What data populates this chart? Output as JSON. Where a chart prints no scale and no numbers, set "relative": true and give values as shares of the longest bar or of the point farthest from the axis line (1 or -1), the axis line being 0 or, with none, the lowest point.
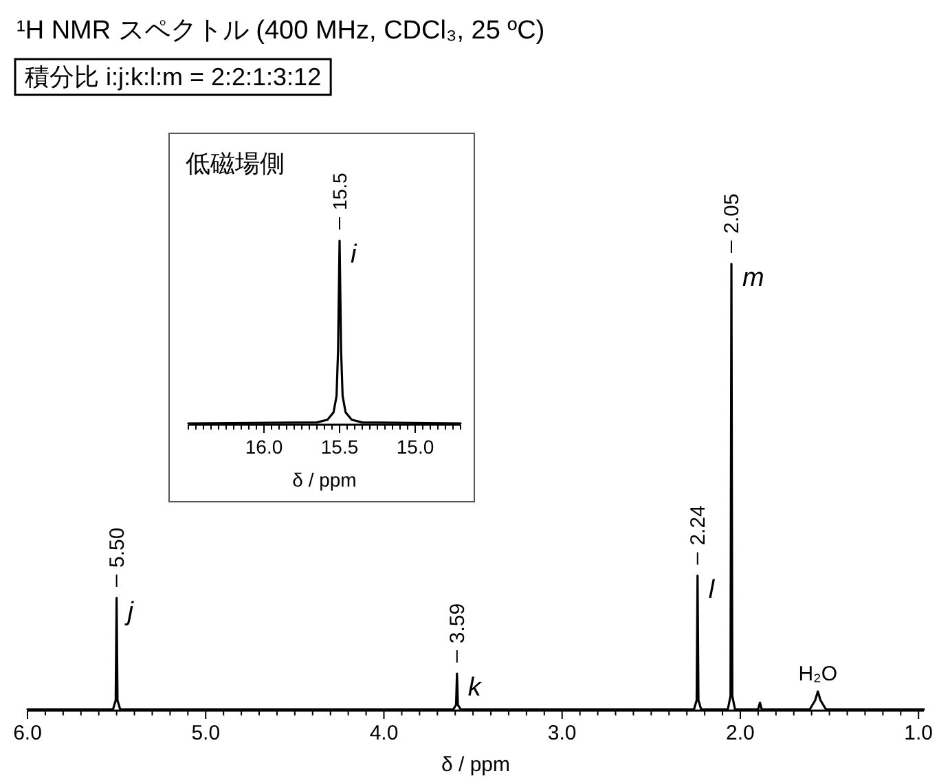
{
  "chart_data": [
    {
      "type": "line",
      "title": "¹H NMR スペクトル (400 MHz, CDCl₃, 25 ºC)",
      "subtitle": "積分比 i:j:k:l:m = 2:2:1:3:12",
      "xlabel": "δ / ppm",
      "relative": true,
      "xlim": [
        6.0,
        0.97
      ],
      "xticks": [
        {
          "value": 6.0,
          "label": "6.0"
        },
        {
          "value": 5.9,
          "label": null
        },
        {
          "value": 5.8,
          "label": null
        },
        {
          "value": 5.7,
          "label": null
        },
        {
          "value": 5.6,
          "label": null
        },
        {
          "value": 5.5,
          "label": null
        },
        {
          "value": 5.4,
          "label": null
        },
        {
          "value": 5.3,
          "label": null
        },
        {
          "value": 5.2,
          "label": null
        },
        {
          "value": 5.1,
          "label": null
        },
        {
          "value": 5.0,
          "label": "5.0"
        },
        {
          "value": 4.9,
          "label": null
        },
        {
          "value": 4.8,
          "label": null
        },
        {
          "value": 4.7,
          "label": null
        },
        {
          "value": 4.6,
          "label": null
        },
        {
          "value": 4.5,
          "label": null
        },
        {
          "value": 4.4,
          "label": null
        },
        {
          "value": 4.3,
          "label": null
        },
        {
          "value": 4.2,
          "label": null
        },
        {
          "value": 4.1,
          "label": null
        },
        {
          "value": 4.0,
          "label": "4.0"
        },
        {
          "value": 3.9,
          "label": null
        },
        {
          "value": 3.8,
          "label": null
        },
        {
          "value": 3.7,
          "label": null
        },
        {
          "value": 3.6,
          "label": null
        },
        {
          "value": 3.5,
          "label": null
        },
        {
          "value": 3.4,
          "label": null
        },
        {
          "value": 3.3,
          "label": null
        },
        {
          "value": 3.2,
          "label": null
        },
        {
          "value": 3.1,
          "label": null
        },
        {
          "value": 3.0,
          "label": "3.0"
        },
        {
          "value": 2.9,
          "label": null
        },
        {
          "value": 2.8,
          "label": null
        },
        {
          "value": 2.7,
          "label": null
        },
        {
          "value": 2.6,
          "label": null
        },
        {
          "value": 2.5,
          "label": null
        },
        {
          "value": 2.4,
          "label": null
        },
        {
          "value": 2.3,
          "label": null
        },
        {
          "value": 2.2,
          "label": null
        },
        {
          "value": 2.1,
          "label": null
        },
        {
          "value": 2.0,
          "label": "2.0"
        },
        {
          "value": 1.9,
          "label": null
        },
        {
          "value": 1.8,
          "label": null
        },
        {
          "value": 1.7,
          "label": null
        },
        {
          "value": 1.6,
          "label": null
        },
        {
          "value": 1.5,
          "label": null
        },
        {
          "value": 1.4,
          "label": null
        },
        {
          "value": 1.3,
          "label": null
        },
        {
          "value": 1.2,
          "label": null
        },
        {
          "value": 1.1,
          "label": null
        },
        {
          "value": 1.0,
          "label": "1.0"
        }
      ],
      "series": [
        {
          "color": "#000000",
          "x": [
            6.0,
            5.52,
            5.505,
            5.5,
            5.495,
            5.48,
            3.61,
            3.595,
            3.59,
            3.585,
            3.57,
            2.26,
            2.245,
            2.24,
            2.235,
            2.22,
            2.07,
            2.055,
            2.05,
            2.045,
            2.03,
            1.9,
            1.89,
            1.88,
            1.61,
            1.58,
            1.565,
            1.55,
            1.52,
            0.97
          ],
          "values": [
            0,
            0,
            0.02,
            0.25,
            0.02,
            0,
            0,
            0.01,
            0.08,
            0.01,
            0,
            0,
            0.02,
            0.3,
            0.02,
            0,
            0,
            0.03,
            1,
            0.03,
            0,
            0,
            0.015,
            0,
            0,
            0.02,
            0.04,
            0.02,
            0,
            0
          ]
        }
      ],
      "annotations": [
        {
          "text": "5.50",
          "x": 5.5,
          "y": 0.25
        },
        {
          "text": "j",
          "x": 5.5,
          "y": 0.25
        },
        {
          "text": "3.59",
          "x": 3.59,
          "y": 0.08
        },
        {
          "text": "k",
          "x": 3.59,
          "y": 0.08
        },
        {
          "text": "2.24",
          "x": 2.24,
          "y": 0.3
        },
        {
          "text": "l",
          "x": 2.24,
          "y": 0.3
        },
        {
          "text": "2.05",
          "x": 2.05,
          "y": 1
        },
        {
          "text": "m",
          "x": 2.05,
          "y": 1
        },
        {
          "text": "H₂O",
          "x": 1.565,
          "y": 0.04
        }
      ]
    },
    {
      "type": "line",
      "xlabel": "δ / ppm",
      "relative": true,
      "xlim": [
        16.5,
        14.7
      ],
      "xticks": [
        {
          "value": 16.5,
          "label": null
        },
        {
          "value": 16.45,
          "label": null
        },
        {
          "value": 16.4,
          "label": null
        },
        {
          "value": 16.35,
          "label": null
        },
        {
          "value": 16.3,
          "label": null
        },
        {
          "value": 16.25,
          "label": null
        },
        {
          "value": 16.2,
          "label": null
        },
        {
          "value": 16.15,
          "label": null
        },
        {
          "value": 16.1,
          "label": null
        },
        {
          "value": 16.05,
          "label": null
        },
        {
          "value": 16.0,
          "label": "16.0"
        },
        {
          "value": 15.95,
          "label": null
        },
        {
          "value": 15.9,
          "label": null
        },
        {
          "value": 15.85,
          "label": null
        },
        {
          "value": 15.8,
          "label": null
        },
        {
          "value": 15.75,
          "label": null
        },
        {
          "value": 15.7,
          "label": null
        },
        {
          "value": 15.65,
          "label": null
        },
        {
          "value": 15.6,
          "label": null
        },
        {
          "value": 15.55,
          "label": null
        },
        {
          "value": 15.5,
          "label": "15.5"
        },
        {
          "value": 15.45,
          "label": null
        },
        {
          "value": 15.4,
          "label": null
        },
        {
          "value": 15.35,
          "label": null
        },
        {
          "value": 15.3,
          "label": null
        },
        {
          "value": 15.25,
          "label": null
        },
        {
          "value": 15.2,
          "label": null
        },
        {
          "value": 15.15,
          "label": null
        },
        {
          "value": 15.1,
          "label": null
        },
        {
          "value": 15.05,
          "label": null
        },
        {
          "value": 15.0,
          "label": "15.0"
        },
        {
          "value": 14.95,
          "label": null
        },
        {
          "value": 14.9,
          "label": null
        },
        {
          "value": 14.85,
          "label": null
        },
        {
          "value": 14.8,
          "label": null
        },
        {
          "value": 14.75,
          "label": null
        },
        {
          "value": 14.7,
          "label": null
        }
      ],
      "series": [
        {
          "color": "#000000",
          "x": [
            16.5,
            15.65,
            15.58,
            15.54,
            15.52,
            15.51,
            15.5,
            15.49,
            15.48,
            15.46,
            15.42,
            15.35,
            14.7
          ],
          "values": [
            0,
            0.005,
            0.02,
            0.06,
            0.15,
            0.4,
            1,
            0.4,
            0.15,
            0.06,
            0.02,
            0.005,
            0
          ]
        }
      ],
      "annotations": [
        "低磁場側",
        {
          "text": "15.5",
          "x": 15.5,
          "y": 1
        },
        {
          "text": "i",
          "x": 15.5,
          "y": 1
        }
      ]
    }
  ]
}
